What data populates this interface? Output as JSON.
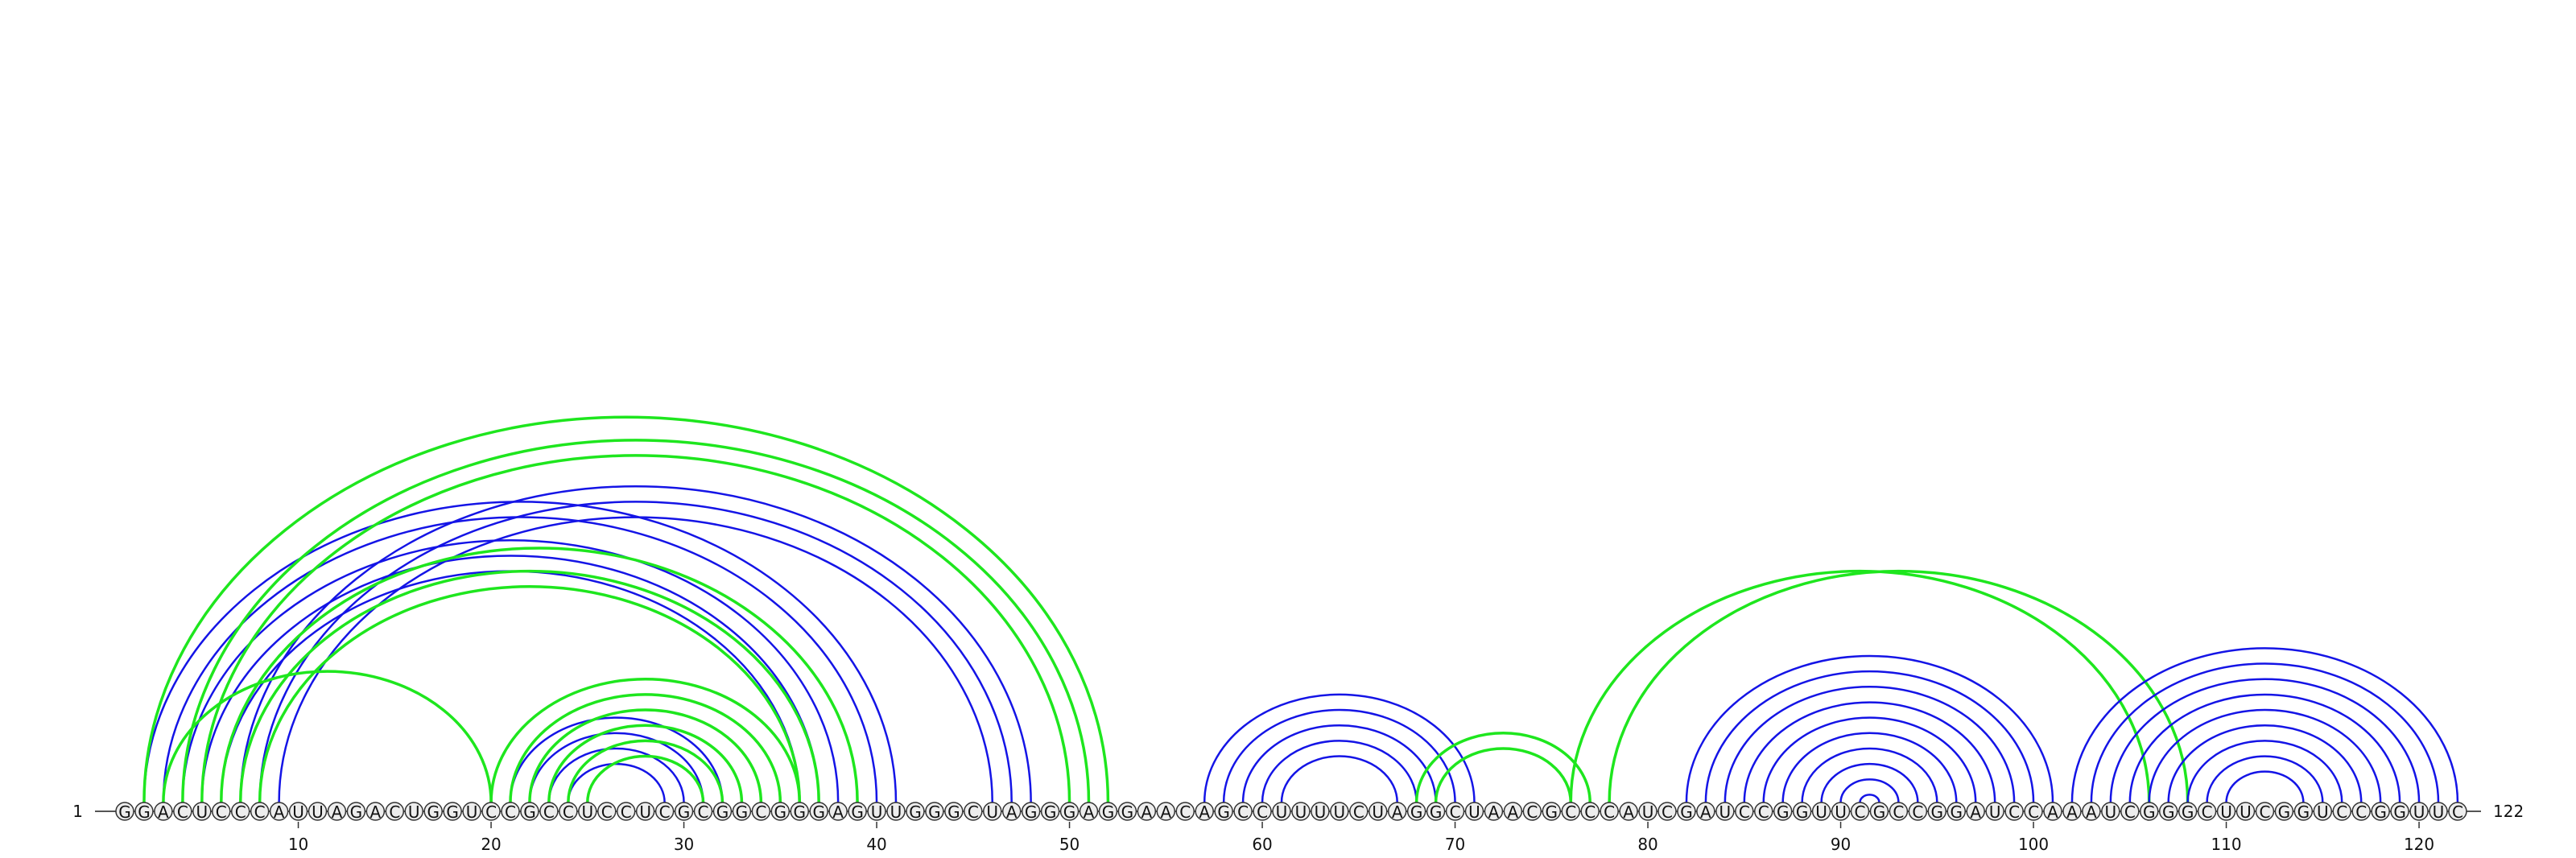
{
  "sequence": "GGACUCCCAUUAGACUGGUCCGCCUCCUCGCGGCGGGAGUUGGGCUAGGGAGGAACAGCCUUUUCUAGGCUAACGCCCAUCGAUCCGGUUCGCCGGAUCCAAAUCGGGCUUCGGUCCGGUUC",
  "start_label": "1",
  "end_label": "122",
  "position_ticks": [
    10,
    20,
    30,
    40,
    50,
    60,
    70,
    80,
    90,
    100,
    110,
    120
  ],
  "colors": {
    "blue": "#1414e6",
    "green": "#1ee61e",
    "nucleotide_fill": "#ededed",
    "nucleotide_stroke": "#333333",
    "baseline": "#555555"
  },
  "arcs": [
    {
      "color": "blue",
      "i": 2,
      "j": 41
    },
    {
      "color": "blue",
      "i": 3,
      "j": 40
    },
    {
      "color": "blue",
      "i": 4,
      "j": 38
    },
    {
      "color": "blue",
      "i": 5,
      "j": 37
    },
    {
      "color": "blue",
      "i": 6,
      "j": 36
    },
    {
      "color": "blue",
      "i": 7,
      "j": 48
    },
    {
      "color": "blue",
      "i": 8,
      "j": 47
    },
    {
      "color": "blue",
      "i": 9,
      "j": 46
    },
    {
      "color": "blue",
      "i": 21,
      "j": 32
    },
    {
      "color": "blue",
      "i": 22,
      "j": 31
    },
    {
      "color": "blue",
      "i": 23,
      "j": 30
    },
    {
      "color": "blue",
      "i": 24,
      "j": 29
    },
    {
      "color": "green",
      "i": 2,
      "j": 52
    },
    {
      "color": "green",
      "i": 4,
      "j": 51
    },
    {
      "color": "green",
      "i": 5,
      "j": 50
    },
    {
      "color": "green",
      "i": 6,
      "j": 39
    },
    {
      "color": "green",
      "i": 7,
      "j": 37
    },
    {
      "color": "green",
      "i": 8,
      "j": 36
    },
    {
      "color": "green",
      "i": 3,
      "j": 20
    },
    {
      "color": "green",
      "i": 20,
      "j": 36
    },
    {
      "color": "green",
      "i": 21,
      "j": 35
    },
    {
      "color": "green",
      "i": 22,
      "j": 34
    },
    {
      "color": "green",
      "i": 23,
      "j": 33
    },
    {
      "color": "green",
      "i": 24,
      "j": 32
    },
    {
      "color": "green",
      "i": 25,
      "j": 31
    },
    {
      "color": "blue",
      "i": 57,
      "j": 71
    },
    {
      "color": "blue",
      "i": 58,
      "j": 70
    },
    {
      "color": "blue",
      "i": 59,
      "j": 69
    },
    {
      "color": "blue",
      "i": 60,
      "j": 68
    },
    {
      "color": "blue",
      "i": 61,
      "j": 67
    },
    {
      "color": "green",
      "i": 68,
      "j": 77
    },
    {
      "color": "green",
      "i": 69,
      "j": 76
    },
    {
      "color": "green",
      "i": 76,
      "j": 106
    },
    {
      "color": "green",
      "i": 78,
      "j": 108
    },
    {
      "color": "blue",
      "i": 82,
      "j": 101
    },
    {
      "color": "blue",
      "i": 83,
      "j": 100
    },
    {
      "color": "blue",
      "i": 84,
      "j": 99
    },
    {
      "color": "blue",
      "i": 85,
      "j": 98
    },
    {
      "color": "blue",
      "i": 86,
      "j": 97
    },
    {
      "color": "blue",
      "i": 87,
      "j": 96
    },
    {
      "color": "blue",
      "i": 88,
      "j": 95
    },
    {
      "color": "blue",
      "i": 89,
      "j": 94
    },
    {
      "color": "blue",
      "i": 90,
      "j": 93
    },
    {
      "color": "blue",
      "i": 91,
      "j": 92
    },
    {
      "color": "blue",
      "i": 102,
      "j": 122
    },
    {
      "color": "blue",
      "i": 103,
      "j": 121
    },
    {
      "color": "blue",
      "i": 104,
      "j": 120
    },
    {
      "color": "blue",
      "i": 105,
      "j": 119
    },
    {
      "color": "blue",
      "i": 106,
      "j": 118
    },
    {
      "color": "blue",
      "i": 107,
      "j": 117
    },
    {
      "color": "blue",
      "i": 108,
      "j": 116
    },
    {
      "color": "blue",
      "i": 109,
      "j": 115
    },
    {
      "color": "blue",
      "i": 110,
      "j": 114
    }
  ]
}
